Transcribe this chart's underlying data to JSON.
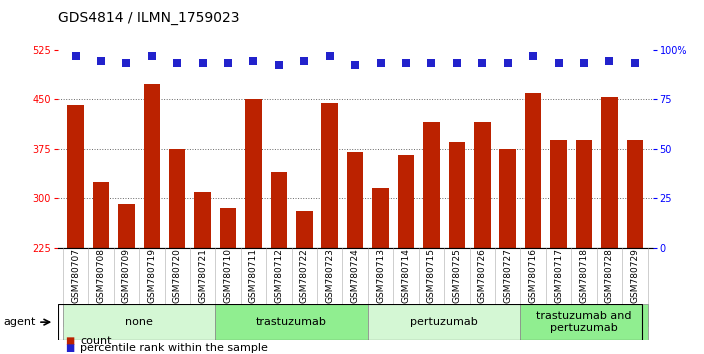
{
  "title": "GDS4814 / ILMN_1759023",
  "samples": [
    "GSM780707",
    "GSM780708",
    "GSM780709",
    "GSM780719",
    "GSM780720",
    "GSM780721",
    "GSM780710",
    "GSM780711",
    "GSM780712",
    "GSM780722",
    "GSM780723",
    "GSM780724",
    "GSM780713",
    "GSM780714",
    "GSM780715",
    "GSM780725",
    "GSM780726",
    "GSM780727",
    "GSM780716",
    "GSM780717",
    "GSM780718",
    "GSM780728",
    "GSM780729"
  ],
  "counts": [
    441,
    325,
    291,
    473,
    375,
    310,
    285,
    450,
    340,
    280,
    444,
    370,
    315,
    365,
    415,
    385,
    415,
    375,
    460,
    388,
    388,
    453,
    388
  ],
  "percentile_ranks": [
    97,
    94,
    93,
    97,
    93,
    93,
    93,
    94,
    92,
    94,
    97,
    92,
    93,
    93,
    93,
    93,
    93,
    93,
    97,
    93,
    93,
    94,
    93
  ],
  "groups": [
    {
      "label": "none",
      "start": 0,
      "end": 6,
      "color": "#d4f7d4"
    },
    {
      "label": "trastuzumab",
      "start": 6,
      "end": 12,
      "color": "#90ee90"
    },
    {
      "label": "pertuzumab",
      "start": 12,
      "end": 18,
      "color": "#d4f7d4"
    },
    {
      "label": "trastuzumab and\npertuzumab",
      "start": 18,
      "end": 23,
      "color": "#90ee90"
    }
  ],
  "ylim_left": [
    225,
    525
  ],
  "yticks_left": [
    225,
    300,
    375,
    450,
    525
  ],
  "ylim_right": [
    0,
    100
  ],
  "yticks_right": [
    0,
    25,
    50,
    75,
    100
  ],
  "bar_color": "#bb2200",
  "dot_color": "#2222cc",
  "bar_width": 0.65,
  "dot_size": 28,
  "dot_marker": "s",
  "agent_label": "agent",
  "legend_count_label": "count",
  "legend_pct_label": "percentile rank within the sample",
  "background_color": "#ffffff",
  "title_fontsize": 10,
  "tick_fontsize": 7,
  "label_fontsize": 8,
  "group_label_fontsize": 8,
  "xtick_fontsize": 6.5
}
